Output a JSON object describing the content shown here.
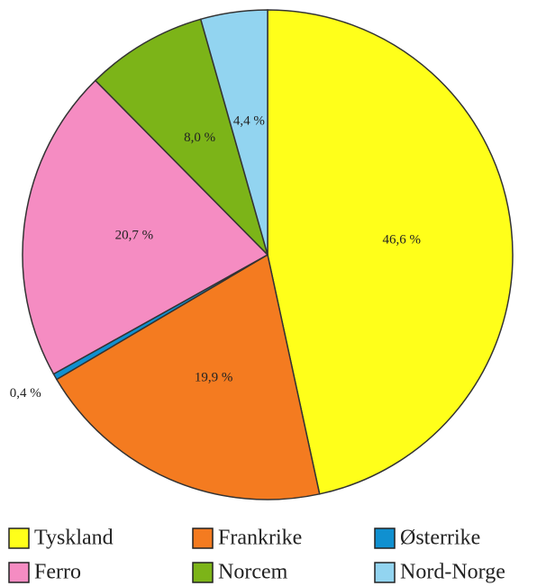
{
  "chart_data": {
    "type": "pie",
    "series": [
      {
        "name": "Tyskland",
        "color": "#ffff1a",
        "values": [
          46.6
        ],
        "value_labels": [
          "46,6 %"
        ]
      },
      {
        "name": "Frankrike",
        "color": "#f47b20",
        "values": [
          19.9
        ],
        "value_labels": [
          "19,9 %"
        ]
      },
      {
        "name": "Østerrike",
        "color": "#1090d0",
        "values": [
          0.4
        ],
        "value_labels": [
          "0,4 %"
        ]
      },
      {
        "name": "Ferro",
        "color": "#f58cc2",
        "values": [
          20.7
        ],
        "value_labels": [
          "20,7 %"
        ]
      },
      {
        "name": "Norcem",
        "color": "#7cb418",
        "values": [
          8.0
        ],
        "value_labels": [
          "8,0 %"
        ]
      },
      {
        "name": "Nord-Norge",
        "color": "#92d4f0",
        "values": [
          4.4
        ],
        "value_labels": [
          "4,4 %"
        ]
      }
    ]
  }
}
